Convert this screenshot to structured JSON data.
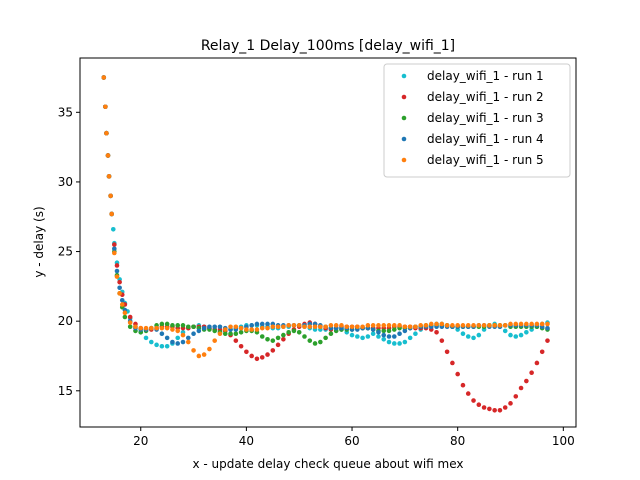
{
  "chart_data": {
    "type": "scatter",
    "title": "Relay_1 Delay_100ms [delay_wifi_1]",
    "xlabel": "x - update delay check queue about wifi mex",
    "ylabel": "y - delay (s)",
    "xlim": [
      8.5,
      102.4
    ],
    "ylim": [
      12.4,
      38.9
    ],
    "xticks": [
      20,
      40,
      60,
      80,
      100
    ],
    "yticks": [
      15,
      20,
      25,
      30,
      35
    ],
    "grid": false,
    "legend_position": "top-right",
    "series": [
      {
        "name": "delay_wifi_1 - run 1",
        "color": "#17becf",
        "x": [
          13,
          13.3,
          13.5,
          13.8,
          14,
          14.3,
          14.5,
          14.8,
          15,
          15.5,
          16,
          16.5,
          17,
          17.5,
          18,
          19,
          20,
          21,
          22,
          23,
          24,
          25,
          26,
          27,
          28,
          29,
          30,
          31,
          32,
          33,
          34,
          35,
          36,
          37,
          38,
          39,
          40,
          41,
          42,
          43,
          44,
          45,
          46,
          47,
          48,
          49,
          50,
          51,
          52,
          53,
          54,
          55,
          56,
          57,
          58,
          59,
          60,
          61,
          62,
          63,
          64,
          65,
          66,
          67,
          68,
          69,
          70,
          71,
          72,
          73,
          74,
          75,
          76,
          77,
          78,
          79,
          80,
          81,
          82,
          83,
          84,
          85,
          86,
          87,
          88,
          89,
          90,
          91,
          92,
          93,
          94,
          95,
          96,
          97
        ],
        "y": [
          37.5,
          35.4,
          33.5,
          31.9,
          30.4,
          29.0,
          27.7,
          26.6,
          25.6,
          24.2,
          23.0,
          22.1,
          21.3,
          20.7,
          20.2,
          19.6,
          19.2,
          18.8,
          18.5,
          18.3,
          18.2,
          18.2,
          18.4,
          18.8,
          19.2,
          19.5,
          19.6,
          19.7,
          19.6,
          19.5,
          19.4,
          19.3,
          19.3,
          19.4,
          19.5,
          19.6,
          19.7,
          19.7,
          19.7,
          19.6,
          19.6,
          19.5,
          19.5,
          19.6,
          19.6,
          19.7,
          19.7,
          19.6,
          19.5,
          19.4,
          19.4,
          19.4,
          19.5,
          19.5,
          19.4,
          19.2,
          19.0,
          18.9,
          18.8,
          18.9,
          19.1,
          18.9,
          18.7,
          18.5,
          18.4,
          18.4,
          18.5,
          18.8,
          19.1,
          19.4,
          19.6,
          19.7,
          19.8,
          19.8,
          19.7,
          19.6,
          19.4,
          19.1,
          18.9,
          18.8,
          19.0,
          19.4,
          19.7,
          19.8,
          19.6,
          19.3,
          19.0,
          18.9,
          19.0,
          19.2,
          19.4,
          19.6,
          19.8,
          19.9
        ]
      },
      {
        "name": "delay_wifi_1 - run 2",
        "color": "#d62728",
        "x": [
          13,
          13.3,
          13.5,
          13.8,
          14,
          14.3,
          14.5,
          15,
          15.5,
          16,
          16.5,
          17,
          18,
          19,
          20,
          21,
          22,
          23,
          24,
          25,
          26,
          27,
          28,
          29,
          30,
          31,
          32,
          33,
          34,
          35,
          36,
          37,
          38,
          39,
          40,
          41,
          42,
          43,
          44,
          45,
          46,
          47,
          48,
          49,
          50,
          51,
          52,
          53,
          54,
          55,
          56,
          57,
          58,
          59,
          60,
          61,
          62,
          63,
          64,
          65,
          66,
          67,
          68,
          69,
          70,
          71,
          72,
          73,
          74,
          75,
          76,
          77,
          78,
          79,
          80,
          81,
          82,
          83,
          84,
          85,
          86,
          87,
          88,
          89,
          90,
          91,
          92,
          93,
          94,
          95,
          96,
          97
        ],
        "y": [
          37.5,
          35.4,
          33.5,
          31.9,
          30.4,
          29.0,
          27.7,
          25.5,
          24.0,
          22.8,
          21.9,
          21.2,
          20.3,
          19.8,
          19.5,
          19.4,
          19.4,
          19.5,
          19.6,
          19.6,
          19.6,
          19.5,
          19.5,
          19.5,
          19.6,
          19.6,
          19.6,
          19.5,
          19.4,
          19.4,
          19.3,
          19.0,
          18.6,
          18.2,
          17.8,
          17.5,
          17.3,
          17.4,
          17.6,
          17.9,
          18.3,
          18.7,
          19.1,
          19.4,
          19.6,
          19.8,
          19.9,
          19.8,
          19.6,
          19.5,
          19.4,
          19.5,
          19.6,
          19.6,
          19.6,
          19.6,
          19.5,
          19.5,
          19.5,
          19.5,
          19.5,
          19.5,
          19.6,
          19.6,
          19.6,
          19.6,
          19.5,
          19.5,
          19.5,
          19.4,
          19.2,
          18.6,
          17.8,
          17.0,
          16.2,
          15.4,
          14.8,
          14.3,
          14.0,
          13.8,
          13.7,
          13.6,
          13.6,
          13.8,
          14.1,
          14.6,
          15.2,
          15.7,
          16.3,
          17.0,
          17.8,
          18.6
        ]
      },
      {
        "name": "delay_wifi_1 - run 3",
        "color": "#2ca02c",
        "x": [
          13,
          13.3,
          13.5,
          13.8,
          14,
          14.3,
          14.5,
          15,
          15.5,
          16,
          16.5,
          17,
          18,
          19,
          20,
          21,
          22,
          23,
          24,
          25,
          26,
          27,
          28,
          29,
          30,
          31,
          32,
          33,
          34,
          35,
          36,
          37,
          38,
          39,
          40,
          41,
          42,
          43,
          44,
          45,
          46,
          47,
          48,
          49,
          50,
          51,
          52,
          53,
          54,
          55,
          56,
          57,
          58,
          59,
          60,
          61,
          62,
          63,
          64,
          65,
          66,
          67,
          68,
          69,
          70,
          71,
          72,
          73,
          74,
          75,
          76,
          77,
          78,
          79,
          80,
          81,
          82,
          83,
          84,
          85,
          86,
          87,
          88,
          89,
          90,
          91,
          92,
          93,
          94,
          95,
          96,
          97
        ],
        "y": [
          37.5,
          35.4,
          33.5,
          31.9,
          30.4,
          29.0,
          27.7,
          25.0,
          23.3,
          22.0,
          21.0,
          20.3,
          19.6,
          19.3,
          19.2,
          19.3,
          19.5,
          19.7,
          19.8,
          19.8,
          19.7,
          19.7,
          19.7,
          19.6,
          19.6,
          19.5,
          19.4,
          19.4,
          19.3,
          19.2,
          19.1,
          19.1,
          19.1,
          19.2,
          19.3,
          19.3,
          19.2,
          18.9,
          18.7,
          18.6,
          18.8,
          19.0,
          19.2,
          19.3,
          19.2,
          18.9,
          18.6,
          18.4,
          18.5,
          18.8,
          19.1,
          19.3,
          19.4,
          19.4,
          19.4,
          19.5,
          19.5,
          19.5,
          19.4,
          19.3,
          19.3,
          19.3,
          19.4,
          19.5,
          19.5,
          19.5,
          19.6,
          19.6,
          19.7,
          19.7,
          19.7,
          19.7,
          19.7,
          19.6,
          19.6,
          19.6,
          19.6,
          19.6,
          19.6,
          19.6,
          19.7,
          19.7,
          19.7,
          19.7,
          19.6,
          19.6,
          19.6,
          19.6,
          19.6,
          19.6,
          19.5,
          19.4
        ]
      },
      {
        "name": "delay_wifi_1 - run 4",
        "color": "#1f77b4",
        "x": [
          13,
          13.3,
          13.5,
          13.8,
          14,
          14.3,
          14.5,
          15,
          15.5,
          16,
          16.5,
          17,
          18,
          19,
          20,
          21,
          22,
          23,
          24,
          25,
          26,
          27,
          28,
          29,
          30,
          31,
          32,
          33,
          34,
          35,
          36,
          37,
          38,
          39,
          40,
          41,
          42,
          43,
          44,
          45,
          46,
          47,
          48,
          49,
          50,
          51,
          52,
          53,
          54,
          55,
          56,
          57,
          58,
          59,
          60,
          61,
          62,
          63,
          64,
          65,
          66,
          67,
          68,
          69,
          70,
          71,
          72,
          73,
          74,
          75,
          76,
          77,
          78,
          79,
          80,
          81,
          82,
          83,
          84,
          85,
          86,
          87,
          88,
          89,
          90,
          91,
          92,
          93,
          94,
          95,
          96,
          97
        ],
        "y": [
          37.5,
          35.4,
          33.5,
          31.9,
          30.4,
          29.0,
          27.7,
          25.2,
          23.6,
          22.4,
          21.5,
          20.8,
          20.0,
          19.5,
          19.4,
          19.4,
          19.5,
          19.4,
          19.1,
          18.8,
          18.5,
          18.4,
          18.5,
          18.8,
          19.1,
          19.3,
          19.5,
          19.6,
          19.6,
          19.6,
          19.5,
          19.4,
          19.4,
          19.5,
          19.6,
          19.7,
          19.8,
          19.8,
          19.8,
          19.8,
          19.7,
          19.7,
          19.7,
          19.7,
          19.7,
          19.7,
          19.8,
          19.8,
          19.7,
          19.6,
          19.5,
          19.5,
          19.5,
          19.5,
          19.4,
          19.4,
          19.5,
          19.5,
          19.4,
          19.2,
          19.0,
          18.9,
          18.9,
          19.1,
          19.3,
          19.5,
          19.6,
          19.6,
          19.6,
          19.6,
          19.6,
          19.6,
          19.6,
          19.6,
          19.6,
          19.6,
          19.6,
          19.6,
          19.7,
          19.7,
          19.6,
          19.6,
          19.6,
          19.7,
          19.7,
          19.7,
          19.7,
          19.7,
          19.7,
          19.7,
          19.6,
          19.5
        ]
      },
      {
        "name": "delay_wifi_1 - run 5",
        "color": "#ff7f0e",
        "x": [
          13,
          13.3,
          13.5,
          13.8,
          14,
          14.3,
          14.5,
          15,
          15.5,
          16,
          16.5,
          17,
          18,
          19,
          20,
          21,
          22,
          23,
          24,
          25,
          26,
          27,
          28,
          29,
          30,
          31,
          32,
          33,
          34,
          35,
          36,
          37,
          38,
          39,
          40,
          41,
          42,
          43,
          44,
          45,
          46,
          47,
          48,
          49,
          50,
          51,
          52,
          53,
          54,
          55,
          56,
          57,
          58,
          59,
          60,
          61,
          62,
          63,
          64,
          65,
          66,
          67,
          68,
          69,
          70,
          71,
          72,
          73,
          74,
          75,
          76,
          77,
          78,
          79,
          80,
          81,
          82,
          83,
          84,
          85,
          86,
          87,
          88,
          89,
          90,
          91,
          92,
          93,
          94,
          95,
          96,
          97
        ],
        "y": [
          37.5,
          35.4,
          33.5,
          31.9,
          30.4,
          29.0,
          27.7,
          24.9,
          23.2,
          22.0,
          21.2,
          20.6,
          19.9,
          19.6,
          19.5,
          19.5,
          19.5,
          19.5,
          19.5,
          19.5,
          19.4,
          19.3,
          19.0,
          18.5,
          17.9,
          17.5,
          17.6,
          18.0,
          18.6,
          19.1,
          19.4,
          19.6,
          19.6,
          19.5,
          19.4,
          19.4,
          19.4,
          19.5,
          19.5,
          19.6,
          19.6,
          19.6,
          19.7,
          19.7,
          19.7,
          19.6,
          19.6,
          19.6,
          19.6,
          19.6,
          19.7,
          19.7,
          19.7,
          19.6,
          19.6,
          19.6,
          19.6,
          19.7,
          19.7,
          19.7,
          19.7,
          19.7,
          19.7,
          19.7,
          19.6,
          19.6,
          19.6,
          19.7,
          19.7,
          19.8,
          19.8,
          19.8,
          19.7,
          19.7,
          19.7,
          19.7,
          19.7,
          19.7,
          19.7,
          19.7,
          19.7,
          19.7,
          19.7,
          19.7,
          19.8,
          19.8,
          19.8,
          19.8,
          19.8,
          19.8,
          19.8,
          19.8
        ]
      }
    ]
  }
}
